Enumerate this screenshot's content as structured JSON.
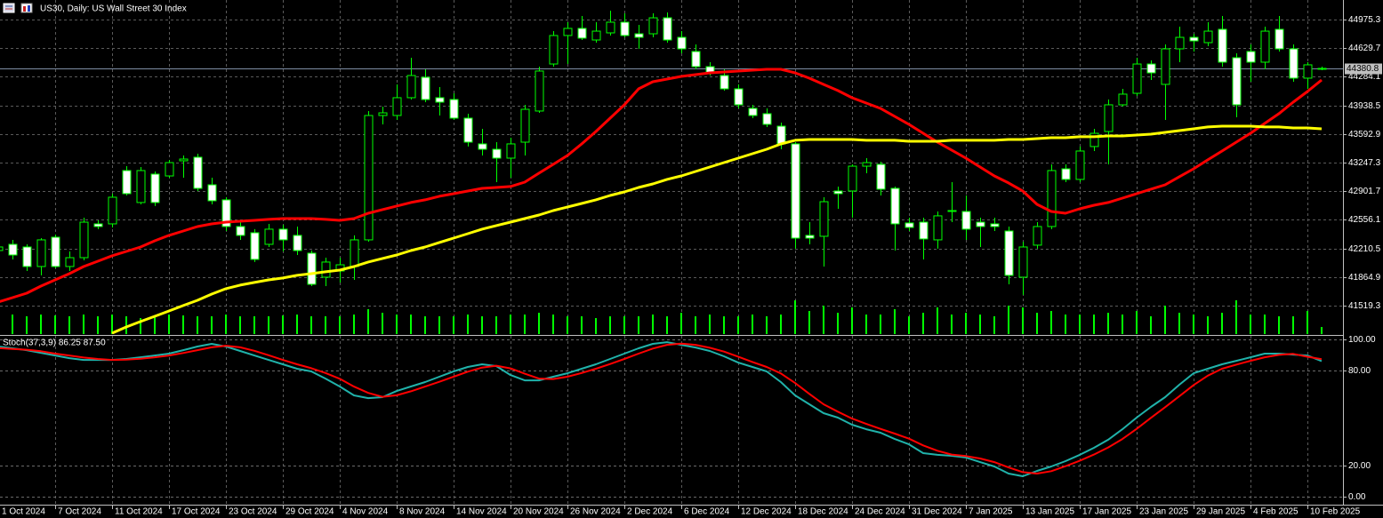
{
  "chart_data": [
    {
      "type": "candlestick",
      "title": "US30, Daily:  US Wall Street 30 Index",
      "categories": [
        "1 Oct 2024",
        null,
        null,
        null,
        "7 Oct 2024",
        null,
        null,
        null,
        "11 Oct 2024",
        null,
        null,
        null,
        "17 Oct 2024",
        null,
        null,
        null,
        "23 Oct 2024",
        null,
        null,
        null,
        "29 Oct 2024",
        null,
        null,
        null,
        "4 Nov 2024",
        null,
        null,
        null,
        "8 Nov 2024",
        null,
        null,
        null,
        "14 Nov 2024",
        null,
        null,
        null,
        "20 Nov 2024",
        null,
        null,
        null,
        "26 Nov 2024",
        null,
        null,
        null,
        "2 Dec 2024",
        null,
        null,
        null,
        "6 Dec 2024",
        null,
        null,
        null,
        "12 Dec 2024",
        null,
        null,
        null,
        "18 Dec 2024",
        null,
        null,
        null,
        "24 Dec 2024",
        null,
        null,
        null,
        "31 Dec 2024",
        null,
        null,
        null,
        "7 Jan 2025",
        null,
        null,
        null,
        "13 Jan 2025",
        null,
        null,
        null,
        "17 Jan 2025",
        null,
        null,
        null,
        "23 Jan 2025",
        null,
        null,
        null,
        "29 Jan 2025",
        null,
        null,
        null,
        "4 Feb 2025",
        null,
        null,
        null,
        "10 Feb 2025",
        null
      ],
      "open": [
        42185,
        42260,
        42228,
        41992,
        42346,
        41992,
        42099,
        42507,
        42507,
        43151,
        42765,
        43108,
        43086,
        43269,
        43312,
        42979,
        42797,
        42475,
        42400,
        42260,
        42443,
        42368,
        42153,
        41863,
        41938,
        41992,
        42314,
        43816,
        43816,
        44031,
        44277,
        44031,
        44009,
        43784,
        43473,
        43408,
        43301,
        43494,
        43870,
        44438,
        44782,
        44868,
        44728,
        44814,
        44943,
        44803,
        44803,
        44996,
        44760,
        44589,
        44406,
        44299,
        44138,
        43902,
        43838,
        43687,
        43473,
        42368,
        42357,
        42904,
        42904,
        43204,
        43226,
        42936,
        42518,
        42528,
        42314,
        42657,
        42657,
        42528,
        42507,
        42421,
        41863,
        42250,
        42475,
        43172,
        43044,
        43441,
        43623,
        43945,
        44084,
        44438,
        44192,
        44621,
        44760,
        44696,
        44857,
        44514,
        44589,
        44460,
        44857,
        44621,
        44267,
        44385
      ],
      "high": [
        42260,
        42314,
        42260,
        42335,
        42378,
        42174,
        42582,
        42550,
        42872,
        43204,
        43194,
        43140,
        43280,
        43333,
        43355,
        43065,
        42829,
        42528,
        42443,
        42507,
        42496,
        42475,
        42185,
        42099,
        42099,
        42368,
        43870,
        43923,
        44192,
        44514,
        44374,
        44159,
        44084,
        43838,
        43655,
        43494,
        43548,
        43945,
        44406,
        44835,
        44943,
        45018,
        44943,
        45082,
        45050,
        44911,
        45050,
        45061,
        44835,
        44674,
        44460,
        44374,
        44192,
        43945,
        43902,
        43730,
        43494,
        42528,
        42829,
        42958,
        43226,
        43301,
        43258,
        42958,
        42582,
        42582,
        42657,
        43011,
        42850,
        42582,
        42582,
        42475,
        42292,
        42528,
        43226,
        43226,
        43441,
        43655,
        44009,
        44138,
        44514,
        44481,
        44674,
        44889,
        44803,
        44943,
        45018,
        44567,
        44674,
        44889,
        45018,
        44674,
        44460,
        44406
      ],
      "low": [
        42153,
        42078,
        41938,
        41885,
        41971,
        41938,
        42067,
        42443,
        42464,
        42850,
        42743,
        42722,
        43065,
        43065,
        42904,
        42743,
        42421,
        42314,
        42046,
        42228,
        42174,
        42131,
        41756,
        41756,
        41799,
        41831,
        42292,
        43709,
        43762,
        44009,
        43977,
        43816,
        43762,
        43441,
        43333,
        43011,
        43065,
        43333,
        43848,
        44406,
        44438,
        44728,
        44696,
        44782,
        44760,
        44621,
        44760,
        44696,
        44567,
        44374,
        44299,
        44117,
        43902,
        43784,
        43677,
        43408,
        42207,
        42260,
        41992,
        42689,
        42582,
        43119,
        42850,
        42185,
        42421,
        42078,
        42207,
        42528,
        42314,
        42228,
        42421,
        41777,
        41649,
        42207,
        42443,
        43011,
        43011,
        43387,
        43226,
        43923,
        44052,
        44245,
        43762,
        44460,
        44589,
        44653,
        44406,
        43795,
        44224,
        44374,
        44589,
        44224,
        44138,
        44363
      ],
      "close": [
        42228,
        42131,
        41992,
        42314,
        41992,
        42099,
        42528,
        42475,
        42829,
        42872,
        43151,
        42765,
        43247,
        43290,
        42936,
        42786,
        42475,
        42368,
        42078,
        42443,
        42314,
        42185,
        41777,
        42046,
        42013,
        42314,
        43816,
        43848,
        44031,
        44299,
        44009,
        43977,
        43784,
        43494,
        43408,
        43301,
        43473,
        43891,
        44353,
        44782,
        44868,
        44750,
        44835,
        44943,
        44782,
        44760,
        44996,
        44728,
        44621,
        44406,
        44331,
        44138,
        43945,
        43816,
        43709,
        43473,
        42335,
        42335,
        42775,
        42872,
        43204,
        43247,
        42926,
        42507,
        42464,
        42325,
        42604,
        42668,
        42443,
        42475,
        42475,
        41885,
        42228,
        42475,
        43151,
        43044,
        43387,
        43601,
        43945,
        44074,
        44438,
        44331,
        44621,
        44760,
        44717,
        44835,
        44460,
        43945,
        44460,
        44835,
        44621,
        44267,
        44428,
        44385
      ],
      "up_color": "#000000",
      "down_color": "#ffffff",
      "outline_color": "#00ff00",
      "series": [
        {
          "color": "#ff0000",
          "values": [
            41563,
            41616,
            41670,
            41756,
            41831,
            41906,
            41992,
            42056,
            42121,
            42174,
            42228,
            42303,
            42368,
            42421,
            42475,
            42507,
            42528,
            42539,
            42550,
            42561,
            42571,
            42571,
            42571,
            42561,
            42550,
            42571,
            42636,
            42679,
            42722,
            42765,
            42797,
            42840,
            42872,
            42904,
            42936,
            42947,
            42958,
            43011,
            43119,
            43226,
            43333,
            43473,
            43623,
            43784,
            43945,
            44138,
            44224,
            44256,
            44288,
            44310,
            44331,
            44342,
            44353,
            44363,
            44374,
            44374,
            44331,
            44267,
            44192,
            44117,
            44031,
            43966,
            43902,
            43805,
            43709,
            43601,
            43494,
            43398,
            43301,
            43194,
            43086,
            43001,
            42904,
            42743,
            42657,
            42636,
            42689,
            42732,
            42765,
            42818,
            42872,
            42926,
            42979,
            43076,
            43172,
            43280,
            43387,
            43494,
            43601,
            43720,
            43838,
            43977,
            44106,
            44245
          ]
        },
        {
          "color": "#ffff00",
          "values": [
            null,
            null,
            null,
            null,
            null,
            null,
            null,
            null,
            41187,
            41262,
            41327,
            41391,
            41455,
            41520,
            41584,
            41659,
            41724,
            41767,
            41799,
            41831,
            41853,
            41885,
            41906,
            41928,
            41949,
            41992,
            42046,
            42089,
            42131,
            42185,
            42228,
            42282,
            42335,
            42389,
            42443,
            42486,
            42528,
            42571,
            42614,
            42668,
            42711,
            42754,
            42797,
            42850,
            42893,
            42947,
            42990,
            43044,
            43086,
            43140,
            43194,
            43247,
            43301,
            43355,
            43408,
            43473,
            43516,
            43526,
            43526,
            43526,
            43526,
            43516,
            43516,
            43516,
            43505,
            43505,
            43505,
            43516,
            43516,
            43516,
            43516,
            43526,
            43526,
            43537,
            43548,
            43548,
            43559,
            43559,
            43569,
            43569,
            43580,
            43591,
            43612,
            43634,
            43655,
            43677,
            43687,
            43687,
            43687,
            43677,
            43677,
            43666,
            43666,
            43655
          ]
        }
      ],
      "volumes": [
        22,
        22,
        20,
        22,
        21,
        20,
        22,
        20,
        22,
        20,
        18,
        20,
        22,
        21,
        20,
        20,
        22,
        20,
        20,
        20,
        21,
        22,
        20,
        20,
        20,
        22,
        28,
        24,
        22,
        22,
        20,
        20,
        20,
        22,
        20,
        20,
        22,
        22,
        24,
        22,
        20,
        20,
        18,
        20,
        20,
        20,
        22,
        20,
        24,
        20,
        22,
        20,
        20,
        22,
        20,
        22,
        38,
        26,
        32,
        24,
        30,
        22,
        22,
        28,
        20,
        24,
        30,
        22,
        24,
        22,
        20,
        32,
        30,
        24,
        26,
        22,
        22,
        22,
        24,
        22,
        26,
        20,
        32,
        24,
        22,
        20,
        24,
        38,
        22,
        22,
        20,
        20,
        26,
        8
      ],
      "volume_color": "#00ff00",
      "last_price": 44380.8,
      "ylim": [
        41176,
        45211
      ],
      "yticks": [
        44975.3,
        44629.7,
        44284.1,
        43938.5,
        43592.9,
        43247.3,
        42901.7,
        42556.1,
        42210.5,
        41864.9,
        41519.3
      ],
      "grid": true
    },
    {
      "type": "line",
      "title": "Stoch(37,3,9) 86.25 87.50",
      "series": [
        {
          "color": "#20b2aa",
          "values": [
            95.5,
            94.4,
            93.2,
            91.5,
            89.8,
            88.1,
            87.0,
            87.0,
            87.0,
            87.6,
            88.7,
            89.8,
            91.0,
            93.2,
            95.5,
            97.2,
            95.5,
            92.7,
            89.8,
            87.0,
            84.2,
            81.4,
            79.7,
            75.1,
            70.1,
            64.4,
            62.7,
            63.3,
            67.2,
            70.1,
            72.9,
            76.3,
            79.7,
            82.5,
            84.2,
            83.1,
            77.4,
            74.0,
            74.0,
            76.3,
            78.5,
            81.4,
            84.2,
            87.6,
            91.0,
            94.4,
            97.2,
            98.3,
            96.6,
            94.9,
            92.7,
            89.3,
            85.3,
            82.5,
            79.7,
            72.9,
            64.4,
            58.8,
            53.1,
            50.3,
            45.8,
            42.9,
            40.7,
            36.7,
            33.3,
            27.7,
            26.6,
            26.0,
            24.9,
            22.0,
            19.2,
            14.7,
            13.0,
            16.4,
            19.2,
            22.6,
            26.6,
            31.1,
            36.2,
            42.9,
            50.3,
            57.1,
            63.3,
            71.2,
            78.5,
            81.4,
            84.2,
            86.4,
            88.7,
            91.0,
            91.0,
            90.4,
            89.8,
            86.25
          ]
        },
        {
          "color": "#ff0000",
          "values": [
            94.5,
            94.0,
            93.5,
            92.5,
            91.0,
            89.8,
            88.5,
            87.6,
            87.0,
            87.2,
            87.8,
            88.7,
            89.8,
            91.4,
            93.2,
            95.0,
            96.0,
            95.0,
            92.8,
            90.0,
            87.0,
            84.2,
            81.7,
            78.7,
            75.0,
            70.0,
            66.0,
            63.5,
            64.5,
            67.0,
            70.0,
            73.1,
            76.3,
            79.5,
            82.1,
            83.3,
            81.6,
            78.2,
            75.1,
            74.8,
            76.3,
            78.7,
            81.4,
            84.4,
            87.6,
            91.0,
            94.2,
            96.6,
            97.4,
            96.6,
            94.7,
            92.3,
            89.1,
            85.7,
            82.5,
            78.4,
            72.3,
            65.4,
            58.8,
            54.1,
            49.7,
            46.3,
            43.1,
            40.1,
            36.9,
            32.6,
            29.2,
            26.8,
            25.8,
            24.3,
            22.0,
            18.6,
            15.6,
            14.7,
            16.2,
            19.4,
            22.8,
            26.8,
            31.3,
            36.7,
            43.1,
            50.1,
            56.9,
            63.9,
            71.0,
            77.0,
            81.4,
            84.0,
            86.4,
            88.7,
            90.2,
            90.8,
            89.0,
            87.5
          ]
        }
      ],
      "ylim": [
        -5.1,
        102.3
      ],
      "yticks": [
        {
          "value": 100,
          "label": "100.00"
        },
        {
          "value": 80,
          "label": "80.00"
        },
        {
          "value": 20,
          "label": "20.00"
        },
        {
          "value": 0,
          "label": "0.00"
        }
      ]
    }
  ]
}
